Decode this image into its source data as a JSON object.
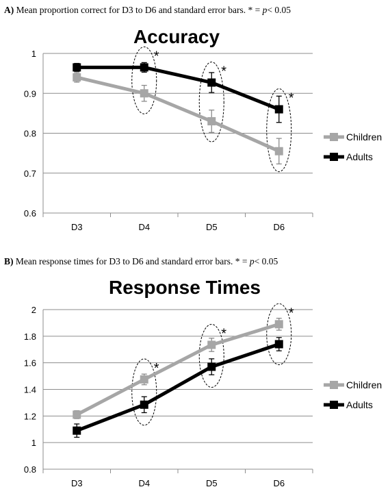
{
  "captions": {
    "a": {
      "prefix": "A)",
      "text": " Mean proportion correct for D3 to D6 and standard error bars.  * = ",
      "p": "p",
      "suffix": "< 0.05"
    },
    "b": {
      "prefix": "B)",
      "text": " Mean response times for D3 to D6 and standard error bars.  * = ",
      "p": "p",
      "suffix": "< 0.05"
    }
  },
  "chart_data": [
    {
      "type": "line",
      "title": "Accuracy",
      "xlabel": "",
      "ylabel": "",
      "categories": [
        "D3",
        "D4",
        "D5",
        "D6"
      ],
      "ylim": [
        0.6,
        1
      ],
      "yticks": [
        0.6,
        0.7,
        0.8,
        0.9,
        1
      ],
      "ytick_labels": [
        "0.6",
        "0.7",
        "0.8",
        "0.9",
        "1"
      ],
      "grid": true,
      "legend": "right",
      "series": [
        {
          "name": "Children",
          "color": "#a6a6a6",
          "values": [
            0.94,
            0.9,
            0.83,
            0.755
          ],
          "errors": [
            0.012,
            0.02,
            0.028,
            0.032
          ]
        },
        {
          "name": "Adults",
          "color": "#000000",
          "values": [
            0.965,
            0.965,
            0.927,
            0.86
          ],
          "errors": [
            0.01,
            0.012,
            0.025,
            0.033
          ]
        }
      ],
      "significance": [
        "D4",
        "D5",
        "D6"
      ],
      "significance_marker": "*"
    },
    {
      "type": "line",
      "title": "Response Times",
      "xlabel": "",
      "ylabel": "",
      "categories": [
        "D3",
        "D4",
        "D5",
        "D6"
      ],
      "ylim": [
        0.8,
        2
      ],
      "yticks": [
        0.8,
        1,
        1.2,
        1.4,
        1.6,
        1.8,
        2
      ],
      "ytick_labels": [
        "0.8",
        "1",
        "1.2",
        "1.4",
        "1.6",
        "1.8",
        "2"
      ],
      "grid": true,
      "legend": "right",
      "series": [
        {
          "name": "Children",
          "color": "#a6a6a6",
          "values": [
            1.21,
            1.475,
            1.735,
            1.89
          ],
          "errors": [
            0.03,
            0.04,
            0.05,
            0.045
          ]
        },
        {
          "name": "Adults",
          "color": "#000000",
          "values": [
            1.09,
            1.285,
            1.57,
            1.74
          ],
          "errors": [
            0.05,
            0.06,
            0.06,
            0.05
          ]
        }
      ],
      "significance": [
        "D4",
        "D5",
        "D6"
      ],
      "significance_marker": "*"
    }
  ]
}
